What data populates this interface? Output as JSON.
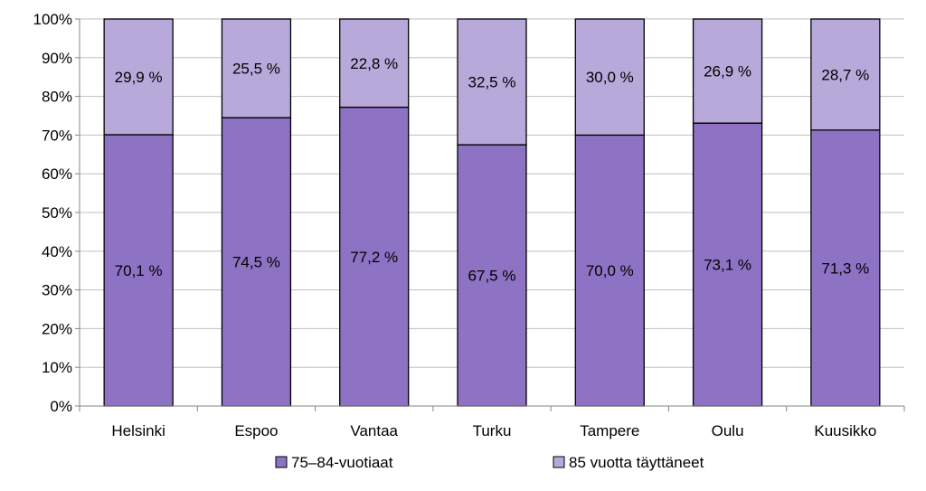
{
  "chart_data": {
    "type": "bar",
    "stacked": true,
    "percent_stacked": true,
    "categories": [
      "Helsinki",
      "Espoo",
      "Vantaa",
      "Turku",
      "Tampere",
      "Oulu",
      "Kuusikko"
    ],
    "series": [
      {
        "name": "75–84-vuotiaat",
        "values": [
          70.1,
          74.5,
          77.2,
          67.5,
          70.0,
          73.1,
          71.3
        ],
        "labels": [
          "70,1 %",
          "74,5 %",
          "77,2 %",
          "67,5 %",
          "70,0 %",
          "73,1 %",
          "71,3 %"
        ],
        "color": "#8e72c4"
      },
      {
        "name": "85 vuotta täyttäneet",
        "values": [
          29.9,
          25.5,
          22.8,
          32.5,
          30.0,
          26.9,
          28.7
        ],
        "labels": [
          "29,9 %",
          "25,5 %",
          "22,8 %",
          "32,5 %",
          "30,0 %",
          "26,9 %",
          "28,7 %"
        ],
        "color": "#b8a9db"
      }
    ],
    "yticks": [
      "0%",
      "10%",
      "20%",
      "30%",
      "40%",
      "50%",
      "60%",
      "70%",
      "80%",
      "90%",
      "100%"
    ],
    "ylim": [
      0,
      100
    ],
    "grid": true,
    "legend_position": "bottom"
  }
}
